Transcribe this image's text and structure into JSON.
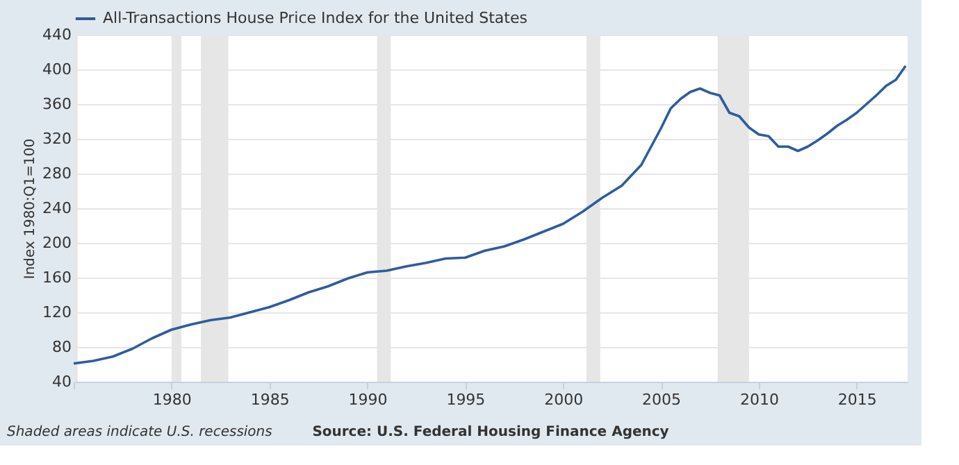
{
  "chart_data": {
    "type": "line",
    "ylabel": "Index 1980:Q1=100",
    "x": [
      1975,
      1976,
      1977,
      1978,
      1979,
      1980,
      1981,
      1982,
      1983,
      1984,
      1985,
      1986,
      1987,
      1988,
      1989,
      1990,
      1991,
      1992,
      1993,
      1994,
      1995,
      1996,
      1997,
      1998,
      1999,
      2000,
      2001,
      2002,
      2003,
      2004,
      2005,
      2005.5,
      2006,
      2006.5,
      2007,
      2007.5,
      2008,
      2008.5,
      2009,
      2009.5,
      2010,
      2010.5,
      2011,
      2011.5,
      2012,
      2012.5,
      2013,
      2013.5,
      2014,
      2014.5,
      2015,
      2015.5,
      2016,
      2016.5,
      2017,
      2017.5
    ],
    "series": [
      {
        "name": "All-Transactions House Price Index for the United States",
        "color": "#2e5c9e",
        "values": [
          61,
          64,
          69,
          78,
          90,
          100,
          106,
          111,
          114,
          120,
          126,
          134,
          143,
          150,
          159,
          166,
          168,
          173,
          177,
          182,
          183,
          191,
          196,
          204,
          213,
          222,
          236,
          252,
          266,
          290,
          332,
          355,
          366,
          374,
          378,
          373,
          370,
          350,
          346,
          333,
          325,
          323,
          311,
          311,
          306,
          311,
          318,
          326,
          335,
          342,
          350,
          360,
          370,
          381,
          388,
          404
        ]
      }
    ],
    "xlim": [
      1975,
      2017.6
    ],
    "xticks": [
      {
        "value": 1975,
        "label": null
      },
      1980,
      1985,
      1990,
      1995,
      2000,
      2005,
      2010,
      2015
    ],
    "ylim": [
      40,
      440
    ],
    "yticks": [
      40,
      80,
      120,
      160,
      200,
      240,
      280,
      320,
      360,
      400,
      440
    ],
    "grid": "y",
    "legend": "top left",
    "marker": "none",
    "line_style": "solid",
    "bands": [
      {
        "axis": "x",
        "from": 1975,
        "to": 1975.2,
        "color": "#e6e6e6"
      },
      {
        "axis": "x",
        "from": 1980,
        "to": 1980.5,
        "color": "#e6e6e6"
      },
      {
        "axis": "x",
        "from": 1981.5,
        "to": 1982.9,
        "color": "#e6e6e6"
      },
      {
        "axis": "x",
        "from": 1990.5,
        "to": 1991.2,
        "color": "#e6e6e6"
      },
      {
        "axis": "x",
        "from": 2001.2,
        "to": 2001.9,
        "color": "#e6e6e6"
      },
      {
        "axis": "x",
        "from": 2007.9,
        "to": 2009.5,
        "color": "#e6e6e6"
      }
    ],
    "annotations": [
      "Shaded areas indicate U.S. recessions",
      "Source: U.S. Federal Housing Finance Agency"
    ]
  }
}
